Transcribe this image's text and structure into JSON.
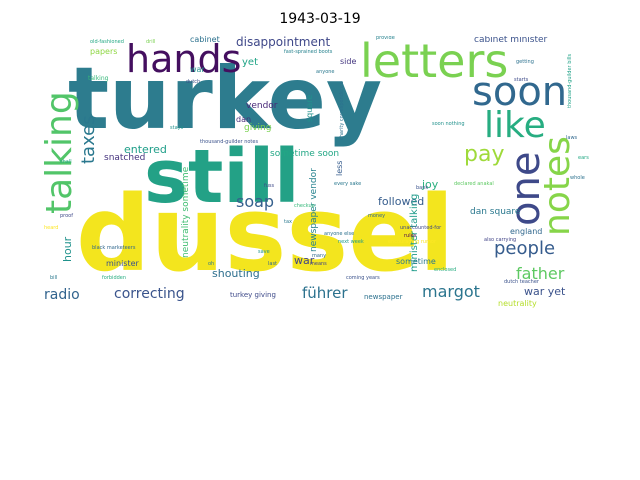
{
  "title": "1943-03-19",
  "words": [
    {
      "text": "dussel",
      "color": "#f3e51e"
    },
    {
      "text": "turkey",
      "color": "#2d7c8e"
    },
    {
      "text": "still",
      "color": "#23a186"
    },
    {
      "text": "letters",
      "color": "#7ad151"
    },
    {
      "text": "hands",
      "color": "#440f5f"
    },
    {
      "text": "talking",
      "color": "#52c569"
    },
    {
      "text": "soon",
      "color": "#31688e"
    },
    {
      "text": "one",
      "color": "#3e4989"
    },
    {
      "text": "notes",
      "color": "#86d549"
    },
    {
      "text": "like",
      "color": "#27ad81"
    },
    {
      "text": "pay",
      "color": "#9fda3a"
    },
    {
      "text": "taxes",
      "color": "#2a788e"
    },
    {
      "text": "people",
      "color": "#365c8d"
    },
    {
      "text": "father",
      "color": "#5ec962"
    },
    {
      "text": "margot",
      "color": "#2b758e"
    },
    {
      "text": "correcting",
      "color": "#3a548c"
    },
    {
      "text": "radio",
      "color": "#32648e"
    },
    {
      "text": "führer",
      "color": "#2c728e"
    },
    {
      "text": "soap",
      "color": "#35608d"
    },
    {
      "text": "disappointment",
      "color": "#3f4889"
    },
    {
      "text": "entered",
      "color": "#1f9e89"
    },
    {
      "text": "followed",
      "color": "#365d8d"
    },
    {
      "text": "war",
      "color": "#414487"
    },
    {
      "text": "war yet",
      "color": "#3b528b"
    },
    {
      "text": "shouting",
      "color": "#2e6f8e"
    },
    {
      "text": "joy",
      "color": "#29af7f"
    },
    {
      "text": "hour",
      "color": "#20928c"
    },
    {
      "text": "yet",
      "color": "#20a486"
    },
    {
      "text": "cabinet minister",
      "color": "#3b528b"
    },
    {
      "text": "minister talking",
      "color": "#1e9b8a"
    },
    {
      "text": "neutrality sometime",
      "color": "#40bd72"
    },
    {
      "text": "newspaper vendor",
      "color": "#26828e"
    },
    {
      "text": "sometime soon",
      "color": "#22a785"
    },
    {
      "text": "dan square",
      "color": "#2a788e"
    },
    {
      "text": "snatched",
      "color": "#46337e"
    },
    {
      "text": "giving",
      "color": "#7ad151"
    },
    {
      "text": "vendor",
      "color": "#482878"
    },
    {
      "text": "papers",
      "color": "#8fd744"
    },
    {
      "text": "cabinet",
      "color": "#2c718e"
    },
    {
      "text": "side",
      "color": "#453781"
    },
    {
      "text": "less",
      "color": "#365c8d"
    },
    {
      "text": "square",
      "color": "#21918c"
    },
    {
      "text": "dan",
      "color": "#472d7b"
    },
    {
      "text": "minister",
      "color": "#3b528b"
    },
    {
      "text": "england",
      "color": "#31688e"
    },
    {
      "text": "sometime",
      "color": "#2a788e"
    },
    {
      "text": "newspaper",
      "color": "#2c718e"
    },
    {
      "text": "neutrality",
      "color": "#b5de2b"
    },
    {
      "text": "turkey giving",
      "color": "#3e4a89"
    },
    {
      "text": "war",
      "color": "#20928c"
    },
    {
      "text": "talking",
      "color": "#35b779"
    },
    {
      "text": "fast-sprained boots",
      "color": "#26828e"
    },
    {
      "text": "thousand-guilder notes",
      "color": "#3b528b"
    },
    {
      "text": "unaccounted-for",
      "color": "#3e4989"
    },
    {
      "text": "declared anakal",
      "color": "#5ec962"
    },
    {
      "text": "black marketeers",
      "color": "#31688e"
    },
    {
      "text": "every sake",
      "color": "#2a788e"
    },
    {
      "text": "thousand-guilder bills",
      "color": "#1fa187"
    },
    {
      "text": "old-fashioned",
      "color": "#22a884"
    },
    {
      "text": "encouraging rumor",
      "color": "#fde725"
    },
    {
      "text": "charity correspondence",
      "color": "#2c718e"
    },
    {
      "text": "dutch teacher",
      "color": "#3b528b"
    },
    {
      "text": "soon nothing",
      "color": "#21918c"
    },
    {
      "text": "also carrying",
      "color": "#414487"
    },
    {
      "text": "enclosed",
      "color": "#27ad81"
    },
    {
      "text": "bill",
      "color": "#2a788e"
    },
    {
      "text": "proof",
      "color": "#3e4989"
    },
    {
      "text": "heard",
      "color": "#fde725"
    },
    {
      "text": "money",
      "color": "#31688e"
    },
    {
      "text": "rules",
      "color": "#440154"
    },
    {
      "text": "anyone else",
      "color": "#2c718e"
    },
    {
      "text": "next week",
      "color": "#1e9b8a"
    },
    {
      "text": "coming years",
      "color": "#3b528b"
    },
    {
      "text": "tax",
      "color": "#2a788e"
    },
    {
      "text": "save",
      "color": "#20928c"
    },
    {
      "text": "laws",
      "color": "#31688e"
    },
    {
      "text": "starts",
      "color": "#3e4a89"
    },
    {
      "text": "getting",
      "color": "#2c718e"
    },
    {
      "text": "checkup",
      "color": "#35b779"
    },
    {
      "text": "provide",
      "color": "#26828e"
    },
    {
      "text": "drill",
      "color": "#7ad151"
    },
    {
      "text": "anyone",
      "color": "#2a788e"
    },
    {
      "text": "dutch",
      "color": "#3b528b"
    },
    {
      "text": "shall",
      "color": "#22a884"
    },
    {
      "text": "many",
      "color": "#31688e"
    },
    {
      "text": "means",
      "color": "#414487"
    },
    {
      "text": "whole",
      "color": "#2c718e"
    },
    {
      "text": "stays",
      "color": "#21918c"
    },
    {
      "text": "fuss",
      "color": "#3e4989"
    },
    {
      "text": "forbidden",
      "color": "#27ad81"
    },
    {
      "text": "oh",
      "color": "#2a788e"
    },
    {
      "text": "bank",
      "color": "#3b528b"
    },
    {
      "text": "last",
      "color": "#31688e"
    },
    {
      "text": "ears",
      "color": "#22a884"
    }
  ]
}
